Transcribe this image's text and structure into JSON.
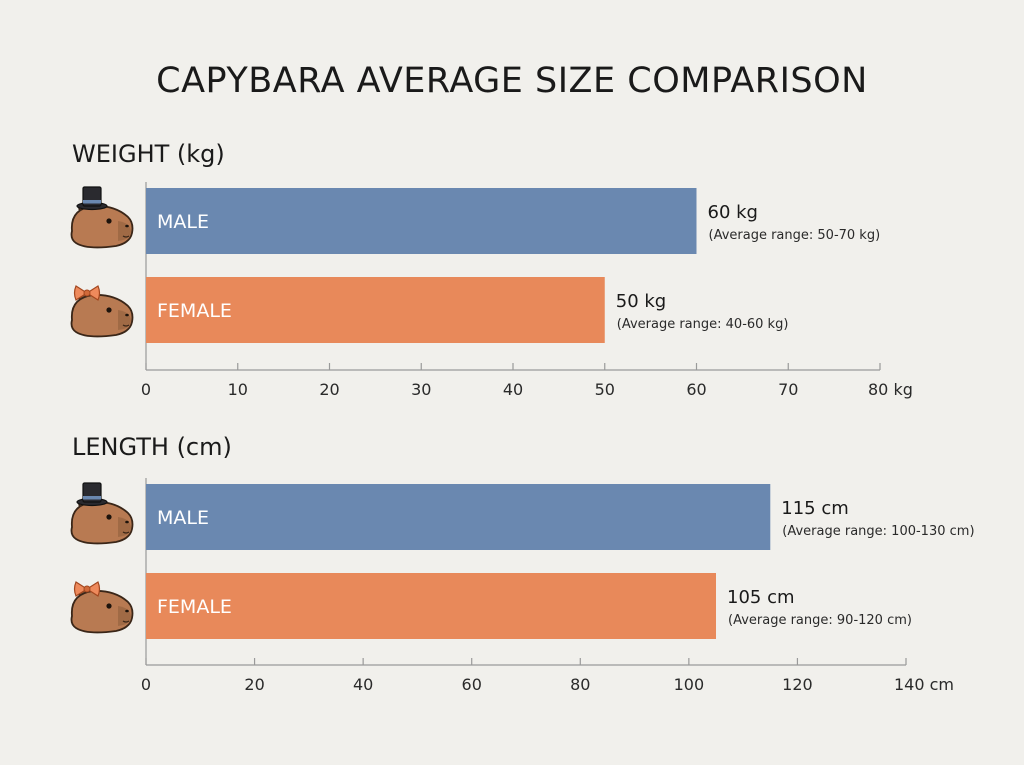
{
  "title": "CAPYBARA AVERAGE SIZE COMPARISON",
  "colors": {
    "male": "#6a88b0",
    "female": "#e8895a",
    "background": "#f1f0ec",
    "capybara": "#b87a52"
  },
  "chart_data": [
    {
      "type": "bar",
      "orientation": "horizontal",
      "title": "WEIGHT (kg)",
      "categories": [
        "MALE",
        "FEMALE"
      ],
      "values": [
        60,
        50
      ],
      "value_labels": [
        "60 kg",
        "50 kg"
      ],
      "range_labels": [
        "(Average range: 50-70 kg)",
        "(Average range: 40-60 kg)"
      ],
      "icons": [
        "capybara-top-hat-icon",
        "capybara-bow-icon"
      ],
      "xlim": [
        0,
        80
      ],
      "ticks": [
        0,
        10,
        20,
        30,
        40,
        50,
        60,
        70,
        80
      ],
      "tick_labels": [
        "0",
        "10",
        "20",
        "30",
        "40",
        "50",
        "60",
        "70",
        "80 kg"
      ]
    },
    {
      "type": "bar",
      "orientation": "horizontal",
      "title": "LENGTH (cm)",
      "categories": [
        "MALE",
        "FEMALE"
      ],
      "values": [
        115,
        105
      ],
      "value_labels": [
        "115 cm",
        "105 cm"
      ],
      "range_labels": [
        "(Average range: 100-130 cm)",
        "(Average range: 90-120 cm)"
      ],
      "icons": [
        "capybara-top-hat-icon",
        "capybara-bow-icon"
      ],
      "xlim": [
        0,
        140
      ],
      "ticks": [
        0,
        20,
        40,
        60,
        80,
        100,
        120,
        140
      ],
      "tick_labels": [
        "0",
        "20",
        "40",
        "60",
        "80",
        "100",
        "120",
        "140 cm"
      ]
    }
  ]
}
